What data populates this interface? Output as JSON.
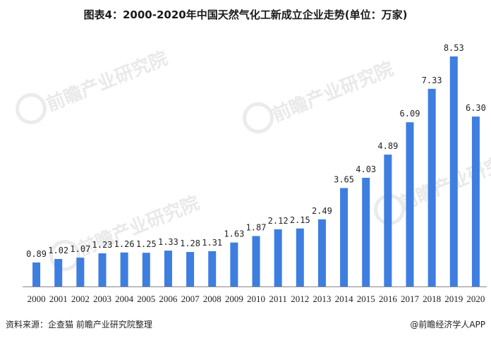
{
  "title": "图表4：2000-2020年中国天然气化工新成立企业走势(单位：万家)",
  "source": "资料来源：企查猫 前瞻产业研究院整理",
  "credit": "@前瞻经济学人APP",
  "watermark": "前瞻产业研究院",
  "colors": {
    "bar": "#3d7ee0",
    "axis": "#888888",
    "watermark": "#e9e9e9"
  },
  "chart_data": {
    "type": "bar",
    "title": "图表4：2000-2020年中国天然气化工新成立企业走势(单位：万家)",
    "xlabel": "",
    "ylabel": "",
    "categories": [
      "2000",
      "2001",
      "2002",
      "2003",
      "2004",
      "2005",
      "2006",
      "2007",
      "2008",
      "2009",
      "2010",
      "2011",
      "2012",
      "2013",
      "2014",
      "2015",
      "2016",
      "2017",
      "2018",
      "2019",
      "2020"
    ],
    "values": [
      0.89,
      1.02,
      1.07,
      1.23,
      1.26,
      1.25,
      1.33,
      1.28,
      1.31,
      1.63,
      1.87,
      2.12,
      2.15,
      2.49,
      3.65,
      4.03,
      4.89,
      6.09,
      7.33,
      8.53,
      6.3
    ],
    "data_labels": [
      "0.89",
      "1.02",
      "1.07",
      "1.23",
      "1.26",
      "1.25",
      "1.33",
      "1.28",
      "1.31",
      "1.63",
      "1.87",
      "2.12",
      "2.15",
      "2.49",
      "3.65",
      "4.03",
      "4.89",
      "6.09",
      "7.33",
      "8.53",
      "6.30"
    ],
    "ylim": [
      0,
      9
    ],
    "grid": false,
    "legend": "none"
  }
}
